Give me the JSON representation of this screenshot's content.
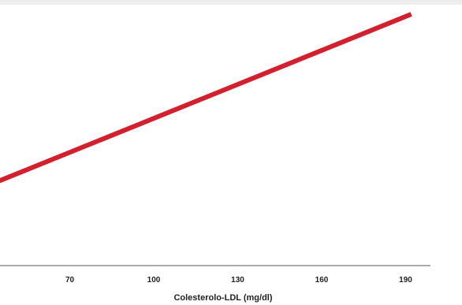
{
  "chart_data": {
    "type": "line",
    "title": "",
    "xlabel": "Colesterolo-LDL (mg/dl)",
    "ylabel": "",
    "xticks": [
      70,
      100,
      130,
      160,
      190
    ],
    "xlim": [
      40,
      200
    ],
    "ylim": [
      0,
      1
    ],
    "grid": false,
    "series": [
      {
        "color": "#d3202e",
        "x": [
          40,
          192
        ],
        "y": [
          0.3,
          1.0
        ]
      }
    ]
  }
}
